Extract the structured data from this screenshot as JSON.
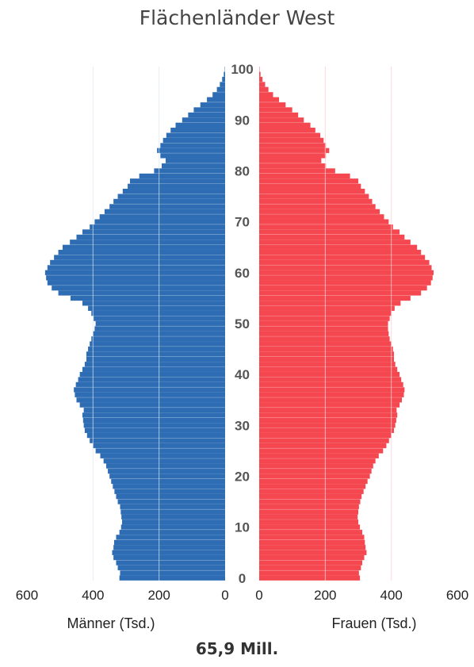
{
  "chart_data": {
    "type": "population-pyramid",
    "title": "Flächenländer West",
    "total": "65,9 Mill.",
    "left_label": "Männer (Tsd.)",
    "right_label": "Frauen (Tsd.)",
    "x_ticks_left": [
      "600",
      "400",
      "200",
      "0"
    ],
    "x_ticks_right": [
      "0",
      "200",
      "400",
      "600"
    ],
    "x_range": [
      0,
      600
    ],
    "age_ticks": [
      "0",
      "10",
      "20",
      "30",
      "40",
      "50",
      "60",
      "70",
      "80",
      "90",
      "100"
    ],
    "age_range": [
      0,
      100
    ],
    "grid": true,
    "colors": {
      "male": "#2E6DB4",
      "female": "#F5474F",
      "grid": "#dce6f2",
      "grid_female": "#ffd0d2"
    },
    "series": [
      {
        "name": "Männer (Tsd.)",
        "values": [
          320,
          318,
          325,
          330,
          338,
          342,
          338,
          336,
          330,
          320,
          315,
          312,
          314,
          316,
          318,
          325,
          330,
          335,
          340,
          345,
          350,
          355,
          360,
          368,
          378,
          392,
          400,
          410,
          418,
          425,
          428,
          430,
          432,
          428,
          440,
          450,
          455,
          458,
          452,
          445,
          440,
          432,
          425,
          420,
          420,
          415,
          410,
          405,
          400,
          395,
          392,
          398,
          405,
          415,
          432,
          468,
          505,
          525,
          538,
          542,
          545,
          538,
          530,
          518,
          505,
          492,
          470,
          450,
          432,
          410,
          395,
          380,
          365,
          350,
          338,
          325,
          310,
          295,
          288,
          260,
          215,
          192,
          180,
          196,
          206,
          196,
          188,
          178,
          165,
          150,
          130,
          112,
          95,
          75,
          55,
          38,
          25,
          16,
          9,
          4,
          1
        ]
      },
      {
        "name": "Frauen (Tsd.)",
        "values": [
          305,
          302,
          308,
          312,
          318,
          325,
          322,
          320,
          318,
          312,
          305,
          300,
          298,
          300,
          302,
          306,
          310,
          316,
          322,
          328,
          335,
          340,
          345,
          352,
          362,
          375,
          385,
          393,
          400,
          408,
          412,
          415,
          418,
          416,
          425,
          432,
          438,
          440,
          436,
          430,
          425,
          418,
          412,
          408,
          408,
          405,
          400,
          395,
          392,
          390,
          390,
          395,
          400,
          410,
          428,
          458,
          490,
          508,
          520,
          525,
          528,
          522,
          515,
          502,
          490,
          478,
          458,
          440,
          425,
          405,
          392,
          378,
          365,
          352,
          342,
          332,
          320,
          308,
          300,
          275,
          230,
          202,
          188,
          202,
          212,
          202,
          195,
          185,
          170,
          155,
          135,
          118,
          100,
          80,
          60,
          42,
          28,
          18,
          10,
          4,
          1
        ]
      }
    ]
  }
}
